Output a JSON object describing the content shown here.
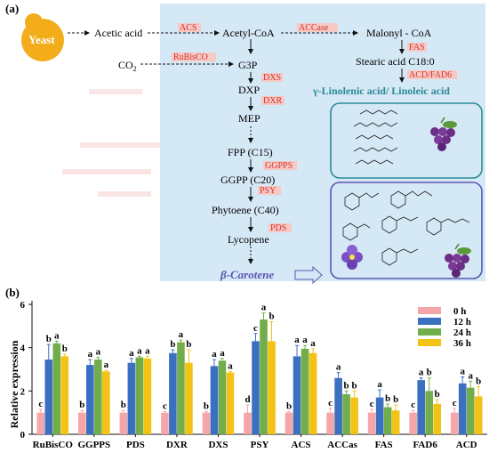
{
  "panel_a": {
    "label": "(a)",
    "yeast": "Yeast",
    "acetic_acid": "Acetic acid",
    "co2": "CO",
    "co2_sub": "2",
    "enzymes": {
      "acs": "ACS",
      "accase": "ACCase",
      "rubisco": "RuBisCO",
      "dxs": "DXS",
      "dxr": "DXR",
      "ggpps": "GGPPS",
      "psy": "PSY",
      "pds": "PDS",
      "fas": "FAS",
      "acd_fad6": "ACD/FAD6"
    },
    "metabolites": {
      "acetyl_coa": "Acetyl-CoA",
      "malonyl_coa": "Malonyl - CoA",
      "g3p": "G3P",
      "stearic": "Stearic acid C18:0",
      "dxp": "DXP",
      "mep": "MEP",
      "fpp": "FPP (C15)",
      "ggpp": "GGPP (C20)",
      "phytoene": "Phytoene (C40)",
      "lycopene": "Lycopene",
      "carotene": "β-Carotene",
      "linolenic": "γ-Linolenic acid/ Linoleic acid"
    },
    "colors": {
      "background_box": "#d5e8f5",
      "enzyme_text": "#d8322e",
      "enzyme_bg": "#f6c9c5",
      "carotene_text": "#5a56b3",
      "linolenic_text": "#2b8a94",
      "yeast": "#f3ad1b"
    }
  },
  "panel_b": {
    "label": "(b)",
    "ylabel": "Relative expression"
  },
  "chart_data": {
    "type": "bar",
    "categories": [
      "RuBisCO",
      "GGPPS",
      "PDS",
      "DXR",
      "DXS",
      "PSY",
      "ACS",
      "ACCas",
      "FAS",
      "FAD6",
      "ACD"
    ],
    "series": [
      {
        "name": "0 h",
        "color": "#f4a6a8",
        "values": [
          1.0,
          1.0,
          1.0,
          1.0,
          1.0,
          1.0,
          1.0,
          1.0,
          1.0,
          1.0,
          1.0
        ],
        "errors": [
          0.15,
          0.1,
          0.1,
          0.05,
          0.05,
          0.35,
          0.05,
          0.2,
          0.15,
          0.1,
          0.2
        ],
        "letters": [
          "c",
          "b",
          "b",
          "c",
          "b",
          "d",
          "b",
          "c",
          "c",
          "c",
          "c"
        ]
      },
      {
        "name": "12 h",
        "color": "#3b6fc0",
        "values": [
          3.45,
          3.2,
          3.3,
          3.75,
          3.15,
          4.3,
          3.6,
          2.6,
          1.7,
          2.5,
          2.35
        ],
        "errors": [
          0.7,
          0.25,
          0.2,
          0.15,
          0.3,
          0.35,
          0.5,
          0.25,
          0.35,
          0.1,
          0.3
        ],
        "letters": [
          "b",
          "a",
          "a",
          "b",
          "a",
          "c",
          "a",
          "a",
          "a",
          "a",
          "a"
        ]
      },
      {
        "name": "24 h",
        "color": "#72ad4b",
        "values": [
          4.2,
          3.45,
          3.55,
          4.25,
          3.4,
          5.3,
          3.95,
          1.85,
          1.25,
          2.0,
          2.15
        ],
        "errors": [
          0.1,
          0.1,
          0.05,
          0.1,
          0.1,
          0.3,
          0.15,
          0.15,
          0.15,
          0.6,
          0.3
        ],
        "letters": [
          "a",
          "a",
          "a",
          "a",
          "a",
          "a",
          "a",
          "b",
          "b",
          "b",
          "a"
        ]
      },
      {
        "name": "36 h",
        "color": "#f2c214",
        "values": [
          3.6,
          2.9,
          3.5,
          3.3,
          2.85,
          4.3,
          3.75,
          1.7,
          1.1,
          1.4,
          1.75
        ],
        "errors": [
          0.1,
          0.05,
          0.1,
          0.6,
          0.05,
          0.9,
          0.2,
          0.3,
          0.25,
          0.2,
          0.45
        ],
        "letters": [
          "b",
          "a",
          "a",
          "b",
          "a",
          "b",
          "a",
          "b",
          "b",
          "b",
          "b"
        ]
      }
    ],
    "ylim": [
      0,
      6
    ],
    "yticks": [
      0,
      2,
      4,
      6
    ],
    "ylabel": "Relative expression",
    "legend_position": "top-right"
  }
}
